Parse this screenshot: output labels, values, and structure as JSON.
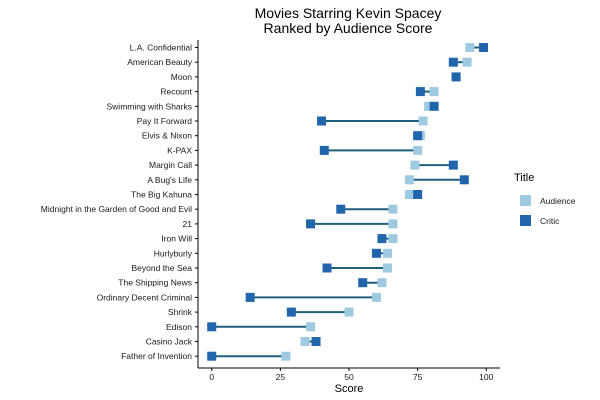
{
  "chart_data": {
    "type": "dumbbell",
    "title": "Movies Starring Kevin Spacey",
    "subtitle": "Ranked by Audience Score",
    "xlabel": "Score",
    "ylabel": "",
    "xlim": [
      -5,
      105
    ],
    "x_ticks": [
      0,
      25,
      50,
      75,
      100
    ],
    "grid": false,
    "legend": {
      "title": "Title",
      "position": "right",
      "entries": [
        {
          "name": "Audience",
          "color": "#9ecae1"
        },
        {
          "name": "Critic",
          "color": "#2166ac"
        }
      ]
    },
    "connector_color": "#1f5f7a",
    "categories": [
      "L.A. Confidential",
      "American Beauty",
      "Moon",
      "Recount",
      "Swimming with Sharks",
      "Pay It Forward",
      "Elvis & Nixon",
      "K-PAX",
      "Margin Call",
      "A Bug's Life",
      "The Big Kahuna",
      "Midnight in the Garden of Good and Evil",
      "21",
      "Iron Will",
      "Hurlyburly",
      "Beyond the Sea",
      "The Shipping News",
      "Ordinary Decent Criminal",
      "Shrink",
      "Edison",
      "Casino Jack",
      "Father of Invention"
    ],
    "series": [
      {
        "name": "Audience",
        "values": [
          94,
          93,
          89,
          81,
          79,
          77,
          76,
          75,
          74,
          72,
          72,
          66,
          66,
          66,
          64,
          64,
          62,
          60,
          50,
          36,
          34,
          27
        ]
      },
      {
        "name": "Critic",
        "values": [
          99,
          88,
          89,
          76,
          81,
          40,
          75,
          41,
          88,
          92,
          75,
          47,
          36,
          62,
          60,
          42,
          55,
          14,
          29,
          0,
          38,
          0
        ]
      }
    ]
  }
}
